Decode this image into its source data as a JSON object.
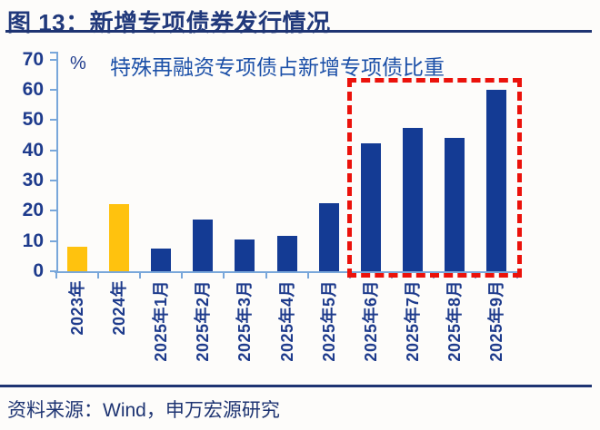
{
  "header": {
    "title": "图 13：新增专项债券发行情况"
  },
  "chart_data": {
    "type": "bar",
    "title": "特殊再融资专项债占新增专项债比重",
    "ylabel": "%",
    "xlabel": "",
    "categories": [
      "2023年",
      "2024年",
      "2025年1月",
      "2025年2月",
      "2025年3月",
      "2025年4月",
      "2025年5月",
      "2025年6月",
      "2025年7月",
      "2025年8月",
      "2025年9月"
    ],
    "values": [
      8.0,
      22.3,
      7.5,
      17.0,
      10.4,
      11.8,
      22.4,
      42.4,
      47.4,
      44.0,
      59.9
    ],
    "ylim": [
      0,
      70
    ],
    "ytick_step": 10,
    "yticks": [
      0,
      10,
      20,
      30,
      40,
      50,
      60,
      70
    ],
    "grid": false,
    "legend_position": "top",
    "bar_colors": [
      "yellow",
      "yellow",
      "blue",
      "blue",
      "blue",
      "blue",
      "blue",
      "blue",
      "blue",
      "blue",
      "blue"
    ],
    "highlight_box": {
      "from_category": "2025年6月",
      "to_category": "2025年9月",
      "style": "red-dashed-rectangle"
    }
  },
  "footer": {
    "source": "资料来源：Wind，申万宏源研究"
  },
  "colors": {
    "background": "#FDFCFA",
    "title_text": "#21397B",
    "rule_line": "#1E3472",
    "legend_text": "#1C50A8",
    "tick_label": "#1E3B8C",
    "axis_line": "#79A7DA",
    "bar_yellow": "#FFC20E",
    "bar_blue": "#143B94",
    "highlight_red": "#EB120B",
    "source_text": "#1E3472"
  }
}
